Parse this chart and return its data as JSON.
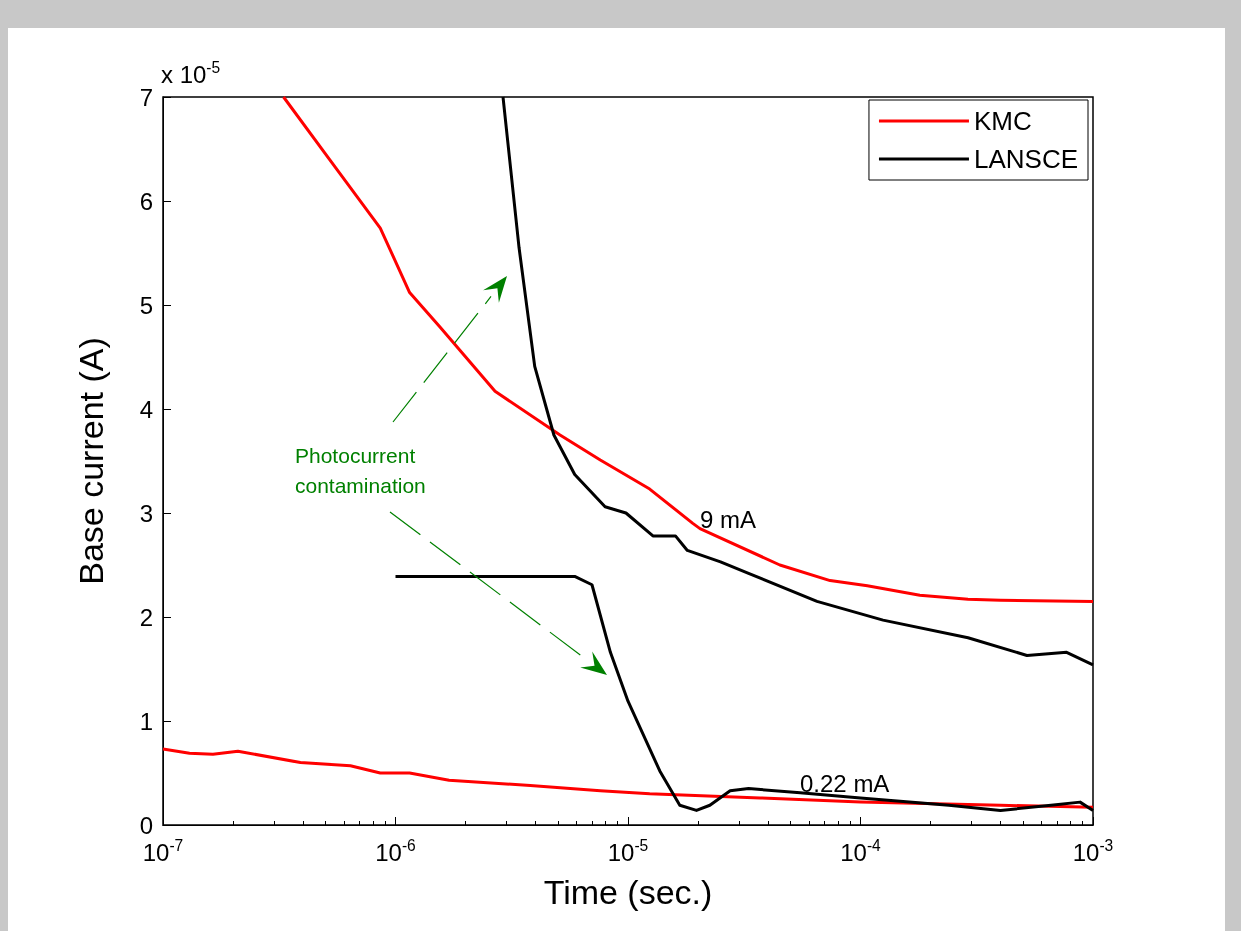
{
  "chart_data": {
    "type": "line",
    "xlabel": "Time (sec.)",
    "ylabel": "Base current (A)",
    "annotations": [
      "x 10$^{-5}$",
      "9 mA",
      "0.22 mA",
      "Photocurrent contamination"
    ],
    "series": [
      {
        "name": "KMC",
        "color": "#ff0000",
        "x": [
          3.3e-07,
          5.2e-07,
          8.6e-07,
          1.15e-06,
          1.55e-06,
          2.68e-06,
          5.1e-06,
          7.6e-06,
          1.24e-05,
          1.9e-05,
          2.04e-05,
          4.5e-05,
          7.4e-05,
          0.000107,
          0.00018,
          0.00029,
          0.0004,
          0.001
        ],
        "values": [
          7.0,
          6.4,
          5.74,
          5.12,
          4.79,
          4.17,
          3.75,
          3.51,
          3.23,
          2.9,
          2.85,
          2.5,
          2.35,
          2.3,
          2.21,
          2.17,
          2.16,
          2.15
        ]
      },
      {
        "name": "LANSCE",
        "color": "#000000",
        "x": [
          2.9e-06,
          3.03e-06,
          3.4e-06,
          3.97e-06,
          4.8e-06,
          5.9e-06,
          7.97e-06,
          9.8e-06,
          1.28e-05,
          1.6e-05,
          1.8e-05,
          2.5e-05,
          3.3e-05,
          6.5e-05,
          0.000125,
          0.00029,
          0.00052,
          0.00077,
          0.001
        ],
        "values": [
          7.0,
          6.6,
          5.55,
          4.41,
          3.75,
          3.37,
          3.06,
          3.0,
          2.78,
          2.78,
          2.64,
          2.53,
          2.42,
          2.15,
          1.97,
          1.8,
          1.63,
          1.66,
          1.54
        ]
      },
      {
        "color": "#ff0000",
        "x": [
          1e-07,
          1.3e-07,
          1.64e-07,
          2.1e-07,
          3.9e-07,
          6.4e-07,
          8.6e-07,
          1.15e-06,
          1.7e-06,
          3.8e-06,
          7.6e-06,
          1.24e-05,
          3.7e-05,
          0.0001,
          0.0004,
          0.001
        ],
        "values": [
          0.73,
          0.69,
          0.68,
          0.71,
          0.6,
          0.57,
          0.5,
          0.5,
          0.43,
          0.38,
          0.33,
          0.3,
          0.26,
          0.22,
          0.19,
          0.17
        ]
      },
      {
        "color": "#000000",
        "x": [
          1e-06,
          5.9e-06,
          7e-06,
          8.4e-06,
          1e-05,
          1.37e-05,
          1.67e-05,
          1.97e-05,
          2.25e-05,
          2.75e-05,
          3.3e-05,
          5.5e-05,
          0.0001,
          0.00024,
          0.0004,
          0.00066,
          0.00088,
          0.001
        ],
        "values": [
          2.39,
          2.39,
          2.31,
          1.66,
          1.19,
          0.52,
          0.19,
          0.14,
          0.19,
          0.33,
          0.35,
          0.31,
          0.26,
          0.19,
          0.14,
          0.19,
          0.22,
          0.14
        ]
      }
    ],
    "xlim": [
      1e-07,
      0.001
    ],
    "xticks": [
      {
        "value": 1e-07,
        "label": "10$^{-7}$"
      },
      {
        "value": 1e-06,
        "label": "10$^{-6}$"
      },
      {
        "value": 1e-05,
        "label": "10$^{-5}$"
      },
      {
        "value": 0.0001,
        "label": "10$^{-4}$"
      },
      {
        "value": 0.001,
        "label": "10$^{-3}$"
      }
    ],
    "ylim": [
      0,
      7
    ],
    "yticks": [
      0,
      1,
      2,
      3,
      4,
      5,
      6,
      7
    ],
    "log": "x",
    "grid": false,
    "legend": "top right",
    "marker": "none",
    "line_style": "solid"
  }
}
